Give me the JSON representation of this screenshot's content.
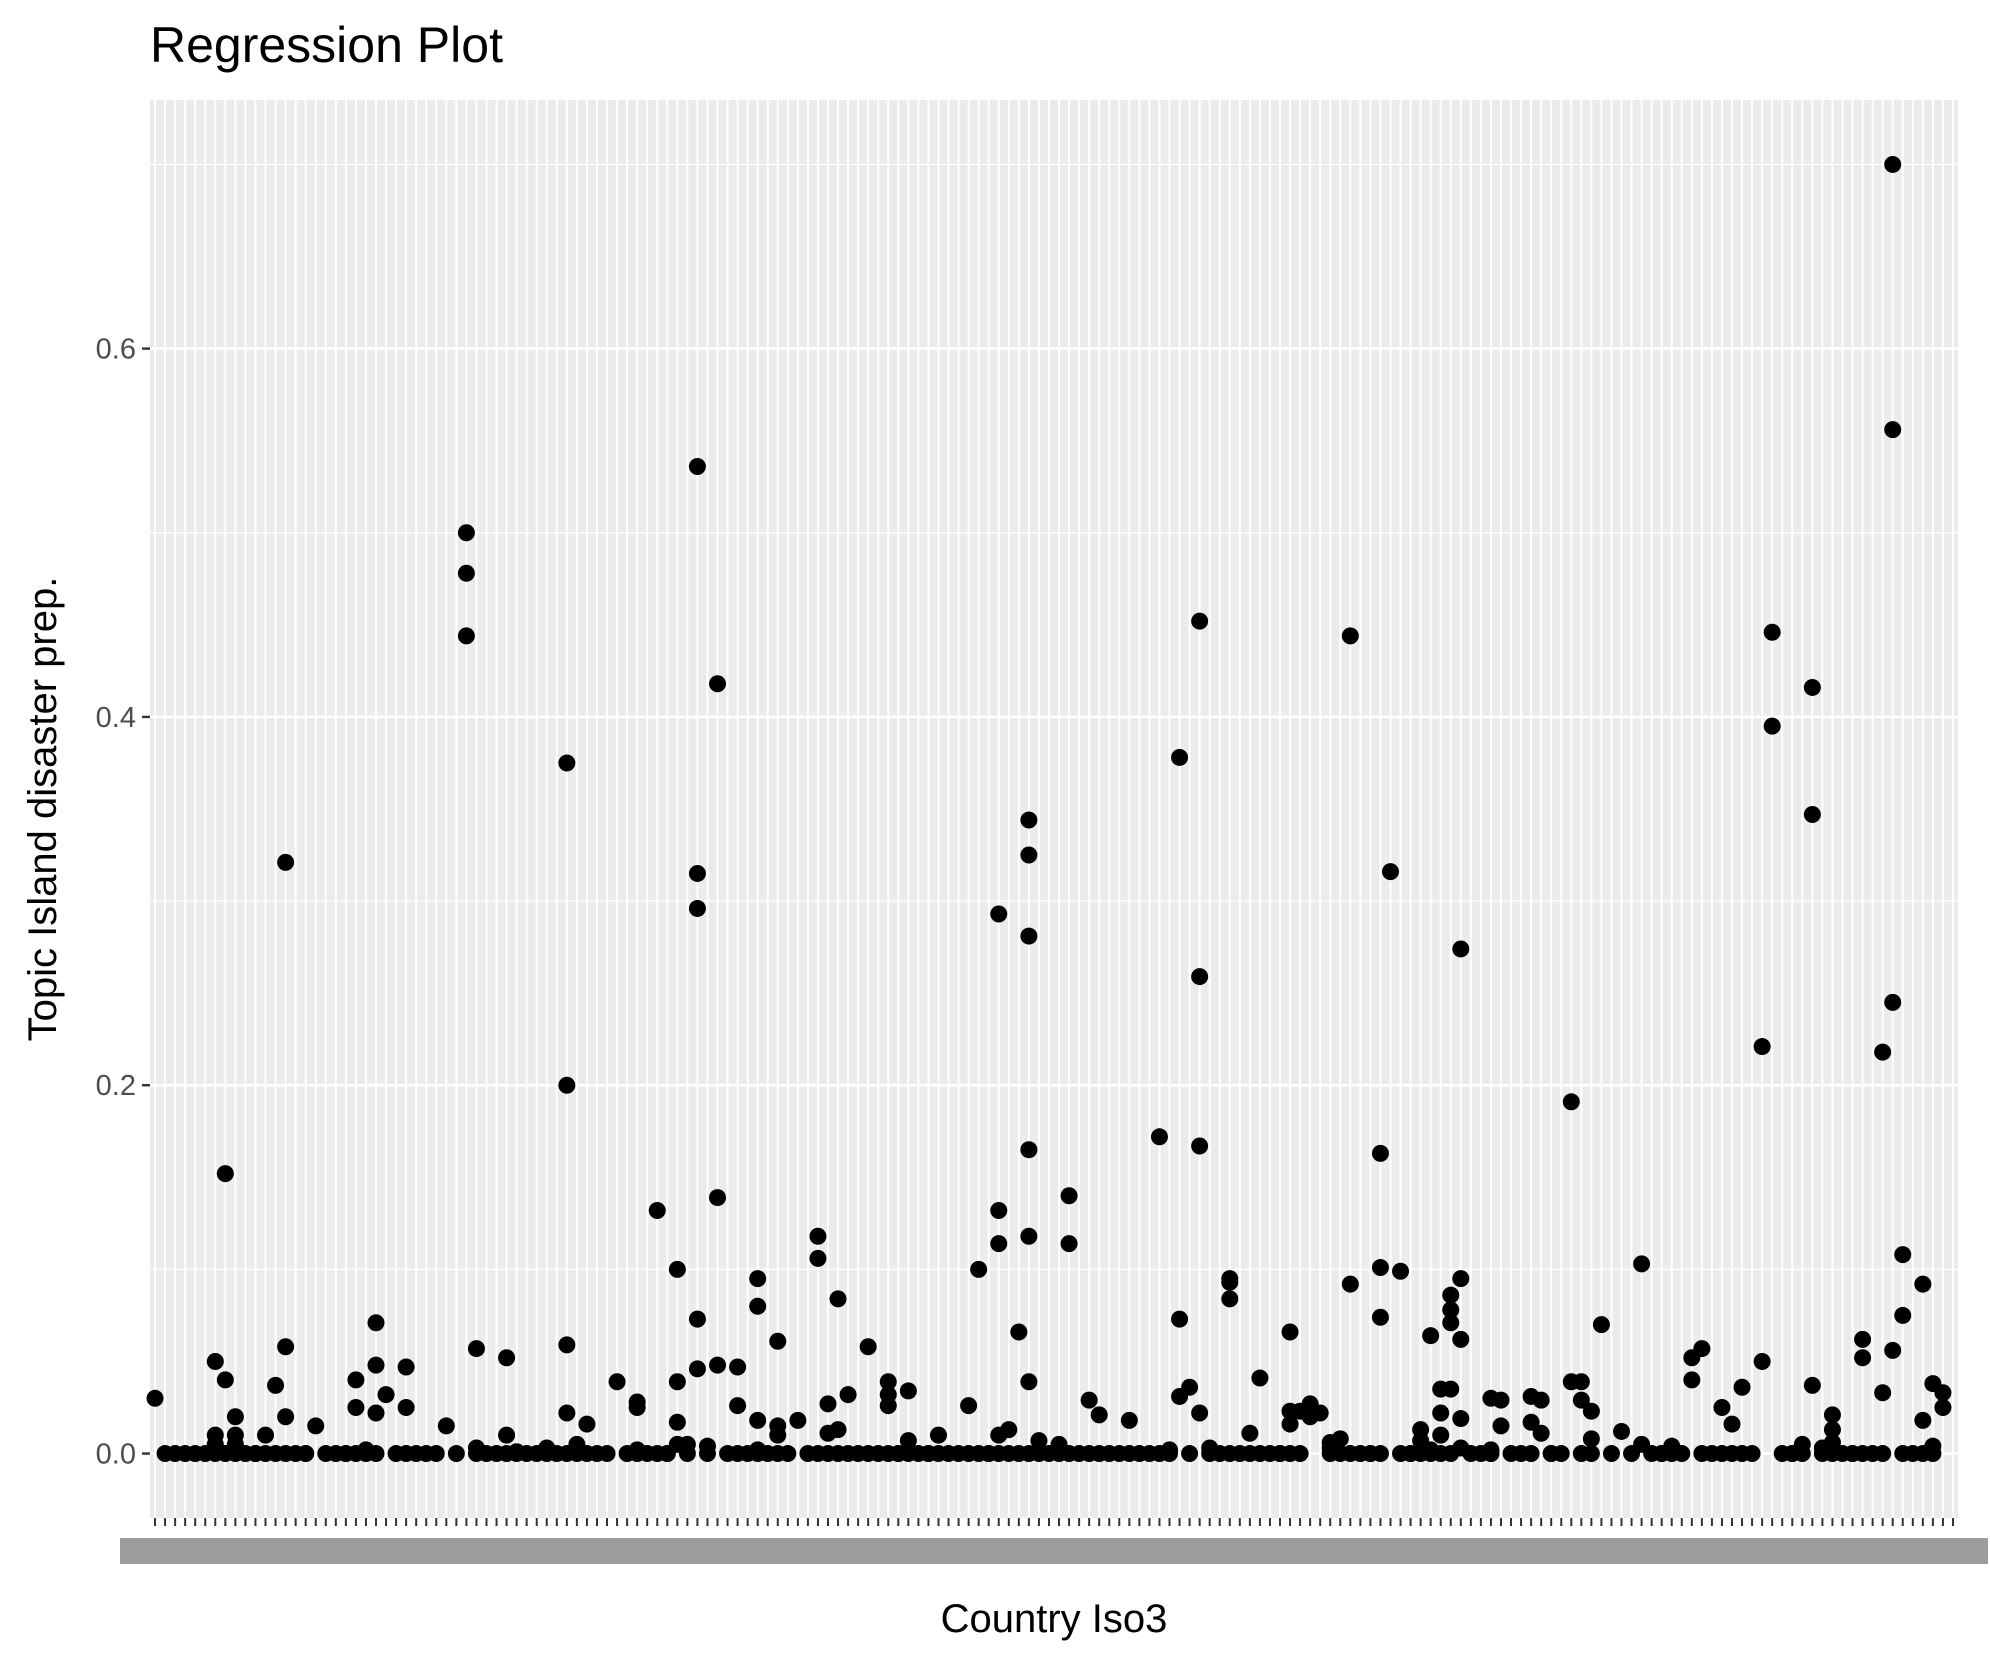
{
  "chart_data": {
    "type": "scatter",
    "title": "Regression Plot",
    "xlabel": "Country Iso3",
    "ylabel": "Topic Island disaster prep.",
    "ylim": [
      -0.035,
      0.735
    ],
    "yticks": [
      "0.0",
      "0.2",
      "0.4",
      "0.6"
    ],
    "ytick_values": [
      0.0,
      0.2,
      0.4,
      0.6
    ],
    "n_categories": 180,
    "grid": true,
    "legend": "none",
    "colors": {
      "panel": "#ebebeb",
      "grid": "#ffffff",
      "point": "#000000",
      "tick_text": "#4d4d4d"
    },
    "points": [
      [
        1,
        0.03
      ],
      [
        2,
        0.0
      ],
      [
        3,
        0.0
      ],
      [
        4,
        0.0
      ],
      [
        5,
        0.0
      ],
      [
        6,
        0.0
      ],
      [
        7,
        0.0
      ],
      [
        7,
        0.005
      ],
      [
        7,
        0.01
      ],
      [
        7,
        0.05
      ],
      [
        8,
        0.0
      ],
      [
        8,
        0.04
      ],
      [
        8,
        0.152
      ],
      [
        9,
        0.0
      ],
      [
        9,
        0.005
      ],
      [
        9,
        0.01
      ],
      [
        9,
        0.02
      ],
      [
        10,
        0.0
      ],
      [
        11,
        0.0
      ],
      [
        11,
        0.0
      ],
      [
        12,
        0.0
      ],
      [
        12,
        0.01
      ],
      [
        13,
        0.0
      ],
      [
        13,
        0.037
      ],
      [
        14,
        0.0
      ],
      [
        14,
        0.02
      ],
      [
        14,
        0.058
      ],
      [
        14,
        0.321
      ],
      [
        15,
        0.0
      ],
      [
        16,
        0.0
      ],
      [
        16,
        0.0
      ],
      [
        17,
        0.015
      ],
      [
        18,
        0.0
      ],
      [
        19,
        0.0
      ],
      [
        20,
        0.0
      ],
      [
        20,
        0.0
      ],
      [
        21,
        0.0
      ],
      [
        21,
        0.025
      ],
      [
        21,
        0.04
      ],
      [
        22,
        0.0
      ],
      [
        22,
        0.002
      ],
      [
        23,
        0.0
      ],
      [
        23,
        0.022
      ],
      [
        23,
        0.048
      ],
      [
        23,
        0.071
      ],
      [
        24,
        0.032
      ],
      [
        25,
        0.0
      ],
      [
        26,
        0.0
      ],
      [
        26,
        0.025
      ],
      [
        26,
        0.047
      ],
      [
        27,
        0.0
      ],
      [
        28,
        0.0
      ],
      [
        29,
        0.0
      ],
      [
        30,
        0.015
      ],
      [
        31,
        0.0
      ],
      [
        32,
        0.5
      ],
      [
        32,
        0.478
      ],
      [
        32,
        0.444
      ],
      [
        33,
        0.0
      ],
      [
        33,
        0.003
      ],
      [
        33,
        0.057
      ],
      [
        34,
        0.0
      ],
      [
        35,
        0.0
      ],
      [
        36,
        0.0
      ],
      [
        36,
        0.01
      ],
      [
        36,
        0.052
      ],
      [
        37,
        0.0
      ],
      [
        37,
        0.001
      ],
      [
        38,
        0.0
      ],
      [
        39,
        0.0
      ],
      [
        40,
        0.0
      ],
      [
        40,
        0.003
      ],
      [
        41,
        0.0
      ],
      [
        42,
        0.0
      ],
      [
        42,
        0.375
      ],
      [
        42,
        0.2
      ],
      [
        42,
        0.059
      ],
      [
        42,
        0.022
      ],
      [
        43,
        0.0
      ],
      [
        43,
        0.005
      ],
      [
        44,
        0.0
      ],
      [
        44,
        0.016
      ],
      [
        45,
        0.0
      ],
      [
        46,
        0.0
      ],
      [
        47,
        0.039
      ],
      [
        48,
        0.0
      ],
      [
        49,
        0.0
      ],
      [
        49,
        0.002
      ],
      [
        49,
        0.025
      ],
      [
        49,
        0.028
      ],
      [
        50,
        0.0
      ],
      [
        51,
        0.0
      ],
      [
        51,
        0.132
      ],
      [
        52,
        0.0
      ],
      [
        52,
        0.0
      ],
      [
        53,
        0.017
      ],
      [
        53,
        0.039
      ],
      [
        53,
        0.1
      ],
      [
        53,
        0.005
      ],
      [
        54,
        0.0
      ],
      [
        54,
        0.005
      ],
      [
        55,
        0.536
      ],
      [
        55,
        0.315
      ],
      [
        55,
        0.296
      ],
      [
        55,
        0.073
      ],
      [
        55,
        0.046
      ],
      [
        56,
        0.0
      ],
      [
        56,
        0.004
      ],
      [
        57,
        0.418
      ],
      [
        57,
        0.139
      ],
      [
        57,
        0.048
      ],
      [
        58,
        0.0
      ],
      [
        59,
        0.0
      ],
      [
        59,
        0.026
      ],
      [
        59,
        0.047
      ],
      [
        60,
        0.0
      ],
      [
        61,
        0.0
      ],
      [
        61,
        0.002
      ],
      [
        61,
        0.018
      ],
      [
        61,
        0.08
      ],
      [
        61,
        0.095
      ],
      [
        62,
        0.0
      ],
      [
        63,
        0.0
      ],
      [
        63,
        0.01
      ],
      [
        63,
        0.015
      ],
      [
        63,
        0.061
      ],
      [
        64,
        0.0
      ],
      [
        65,
        0.018
      ],
      [
        66,
        0.0
      ],
      [
        67,
        0.0
      ],
      [
        67,
        0.106
      ],
      [
        67,
        0.118
      ],
      [
        68,
        0.0
      ],
      [
        68,
        0.011
      ],
      [
        68,
        0.027
      ],
      [
        69,
        0.0
      ],
      [
        69,
        0.013
      ],
      [
        69,
        0.084
      ],
      [
        70,
        0.0
      ],
      [
        70,
        0.032
      ],
      [
        71,
        0.0
      ],
      [
        72,
        0.0
      ],
      [
        72,
        0.058
      ],
      [
        73,
        0.0
      ],
      [
        74,
        0.0
      ],
      [
        74,
        0.026
      ],
      [
        74,
        0.032
      ],
      [
        74,
        0.039
      ],
      [
        75,
        0.0
      ],
      [
        75,
        0.0
      ],
      [
        76,
        0.0
      ],
      [
        76,
        0.007
      ],
      [
        76,
        0.034
      ],
      [
        77,
        0.0
      ],
      [
        78,
        0.0
      ],
      [
        78,
        0.0
      ],
      [
        79,
        0.0
      ],
      [
        79,
        0.01
      ],
      [
        80,
        0.0
      ],
      [
        81,
        0.0
      ],
      [
        82,
        0.0
      ],
      [
        82,
        0.026
      ],
      [
        83,
        0.0
      ],
      [
        83,
        0.1
      ],
      [
        84,
        0.0
      ],
      [
        84,
        0.0
      ],
      [
        85,
        0.0
      ],
      [
        85,
        0.01
      ],
      [
        85,
        0.293
      ],
      [
        85,
        0.132
      ],
      [
        85,
        0.114
      ],
      [
        86,
        0.0
      ],
      [
        86,
        0.013
      ],
      [
        87,
        0.0
      ],
      [
        87,
        0.066
      ],
      [
        88,
        0.0
      ],
      [
        88,
        0.039
      ],
      [
        88,
        0.118
      ],
      [
        88,
        0.165
      ],
      [
        88,
        0.281
      ],
      [
        88,
        0.325
      ],
      [
        88,
        0.344
      ],
      [
        89,
        0.0
      ],
      [
        89,
        0.007
      ],
      [
        90,
        0.0
      ],
      [
        91,
        0.0
      ],
      [
        91,
        0.005
      ],
      [
        92,
        0.0
      ],
      [
        92,
        0.114
      ],
      [
        92,
        0.14
      ],
      [
        93,
        0.0
      ],
      [
        94,
        0.0
      ],
      [
        94,
        0.029
      ],
      [
        95,
        0.0
      ],
      [
        95,
        0.021
      ],
      [
        96,
        0.0
      ],
      [
        97,
        0.0
      ],
      [
        98,
        0.0
      ],
      [
        98,
        0.018
      ],
      [
        99,
        0.0
      ],
      [
        100,
        0.0
      ],
      [
        101,
        0.0
      ],
      [
        101,
        0.172
      ],
      [
        102,
        0.0
      ],
      [
        102,
        0.002
      ],
      [
        103,
        0.378
      ],
      [
        103,
        0.073
      ],
      [
        103,
        0.031
      ],
      [
        104,
        0.0
      ],
      [
        104,
        0.036
      ],
      [
        105,
        0.452
      ],
      [
        105,
        0.259
      ],
      [
        105,
        0.167
      ],
      [
        105,
        0.022
      ],
      [
        106,
        0.0
      ],
      [
        106,
        0.003
      ],
      [
        107,
        0.0
      ],
      [
        108,
        0.0
      ],
      [
        108,
        0.084
      ],
      [
        108,
        0.093
      ],
      [
        108,
        0.095
      ],
      [
        109,
        0.0
      ],
      [
        110,
        0.0
      ],
      [
        110,
        0.011
      ],
      [
        111,
        0.0
      ],
      [
        111,
        0.041
      ],
      [
        112,
        0.0
      ],
      [
        113,
        0.0
      ],
      [
        113,
        0.0
      ],
      [
        114,
        0.0
      ],
      [
        114,
        0.016
      ],
      [
        114,
        0.023
      ],
      [
        114,
        0.066
      ],
      [
        115,
        0.0
      ],
      [
        115,
        0.023
      ],
      [
        116,
        0.02
      ],
      [
        116,
        0.024
      ],
      [
        116,
        0.027
      ],
      [
        117,
        0.022
      ],
      [
        118,
        0.0
      ],
      [
        118,
        0.003
      ],
      [
        118,
        0.006
      ],
      [
        119,
        0.0
      ],
      [
        119,
        0.008
      ],
      [
        120,
        0.0
      ],
      [
        120,
        0.092
      ],
      [
        120,
        0.444
      ],
      [
        121,
        0.0
      ],
      [
        122,
        0.0
      ],
      [
        122,
        0.0
      ],
      [
        123,
        0.0
      ],
      [
        123,
        0.074
      ],
      [
        123,
        0.101
      ],
      [
        123,
        0.163
      ],
      [
        124,
        0.316
      ],
      [
        125,
        0.0
      ],
      [
        125,
        0.099
      ],
      [
        126,
        0.0
      ],
      [
        126,
        0.0
      ],
      [
        127,
        0.0
      ],
      [
        127,
        0.007
      ],
      [
        127,
        0.013
      ],
      [
        128,
        0.0
      ],
      [
        128,
        0.002
      ],
      [
        128,
        0.064
      ],
      [
        129,
        0.0
      ],
      [
        129,
        0.01
      ],
      [
        129,
        0.022
      ],
      [
        129,
        0.035
      ],
      [
        130,
        0.0
      ],
      [
        130,
        0.035
      ],
      [
        130,
        0.071
      ],
      [
        130,
        0.078
      ],
      [
        130,
        0.086
      ],
      [
        131,
        0.274
      ],
      [
        131,
        0.095
      ],
      [
        131,
        0.062
      ],
      [
        131,
        0.019
      ],
      [
        131,
        0.003
      ],
      [
        132,
        0.0
      ],
      [
        133,
        0.0
      ],
      [
        134,
        0.0
      ],
      [
        134,
        0.0
      ],
      [
        134,
        0.002
      ],
      [
        134,
        0.03
      ],
      [
        135,
        0.015
      ],
      [
        135,
        0.029
      ],
      [
        136,
        0.0
      ],
      [
        137,
        0.0
      ],
      [
        138,
        0.0
      ],
      [
        138,
        0.017
      ],
      [
        138,
        0.031
      ],
      [
        139,
        0.011
      ],
      [
        139,
        0.029
      ],
      [
        140,
        0.0
      ],
      [
        140,
        0.0
      ],
      [
        141,
        0.0
      ],
      [
        142,
        0.191
      ],
      [
        142,
        0.039
      ],
      [
        143,
        0.0
      ],
      [
        143,
        0.039
      ],
      [
        143,
        0.029
      ],
      [
        144,
        0.0
      ],
      [
        144,
        0.008
      ],
      [
        144,
        0.023
      ],
      [
        145,
        0.07
      ],
      [
        146,
        0.0
      ],
      [
        147,
        0.012
      ],
      [
        148,
        0.0
      ],
      [
        149,
        0.103
      ],
      [
        149,
        0.005
      ],
      [
        150,
        0.0
      ],
      [
        151,
        0.0
      ],
      [
        151,
        0.0
      ],
      [
        152,
        0.0
      ],
      [
        152,
        0.004
      ],
      [
        153,
        0.0
      ],
      [
        154,
        0.04
      ],
      [
        154,
        0.052
      ],
      [
        155,
        0.057
      ],
      [
        155,
        0.0
      ],
      [
        156,
        0.0
      ],
      [
        157,
        0.0
      ],
      [
        157,
        0.025
      ],
      [
        158,
        0.0
      ],
      [
        158,
        0.016
      ],
      [
        159,
        0.0
      ],
      [
        159,
        0.036
      ],
      [
        160,
        0.0
      ],
      [
        161,
        0.221
      ],
      [
        161,
        0.05
      ],
      [
        162,
        0.446
      ],
      [
        162,
        0.395
      ],
      [
        163,
        0.0
      ],
      [
        164,
        0.0
      ],
      [
        164,
        0.0
      ],
      [
        165,
        0.005
      ],
      [
        165,
        0.0
      ],
      [
        166,
        0.416
      ],
      [
        166,
        0.347
      ],
      [
        166,
        0.037
      ],
      [
        167,
        0.0
      ],
      [
        167,
        0.003
      ],
      [
        168,
        0.0
      ],
      [
        168,
        0.006
      ],
      [
        168,
        0.013
      ],
      [
        168,
        0.021
      ],
      [
        169,
        0.0
      ],
      [
        170,
        0.0
      ],
      [
        170,
        0.0
      ],
      [
        171,
        0.0
      ],
      [
        171,
        0.052
      ],
      [
        171,
        0.062
      ],
      [
        172,
        0.0
      ],
      [
        173,
        0.218
      ],
      [
        173,
        0.033
      ],
      [
        173,
        0.0
      ],
      [
        174,
        0.7
      ],
      [
        174,
        0.556
      ],
      [
        174,
        0.245
      ],
      [
        174,
        0.056
      ],
      [
        175,
        0.108
      ],
      [
        175,
        0.075
      ],
      [
        175,
        0.0
      ],
      [
        176,
        0.0
      ],
      [
        177,
        0.0
      ],
      [
        177,
        0.092
      ],
      [
        177,
        0.018
      ],
      [
        178,
        0.0
      ],
      [
        178,
        0.004
      ],
      [
        178,
        0.038
      ],
      [
        179,
        0.025
      ],
      [
        179,
        0.033
      ]
    ]
  }
}
